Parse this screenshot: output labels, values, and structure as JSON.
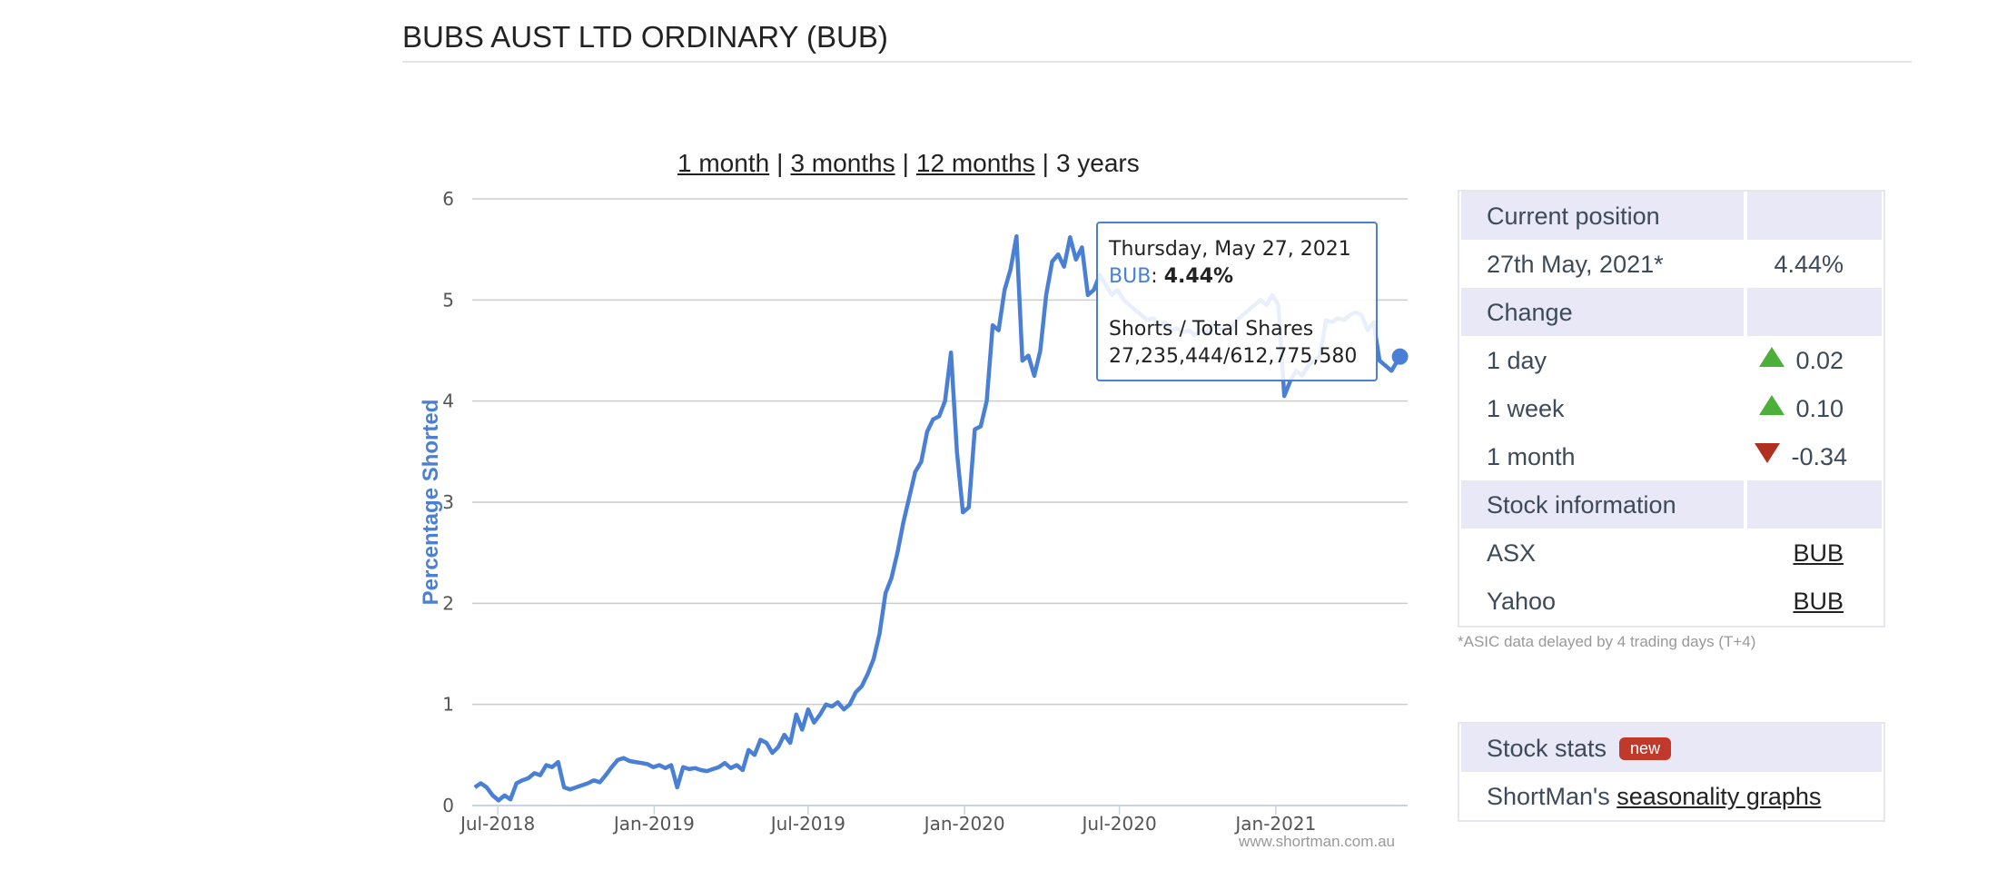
{
  "page": {
    "title": "BUBS AUST LTD ORDINARY (BUB)"
  },
  "range_nav": {
    "options": [
      "1 month",
      "3 months",
      "12 months",
      "3 years"
    ],
    "separator": "|",
    "active": "3 years"
  },
  "chart_data": {
    "type": "line",
    "ylabel": "Percentage Shorted",
    "ylim": [
      0,
      6
    ],
    "y_ticks": [
      "0",
      "1",
      "2",
      "3",
      "4",
      "5",
      "6"
    ],
    "x_range": [
      "2018-06-01",
      "2021-06-05"
    ],
    "x_ticks": [
      {
        "date": "2018-07-01",
        "label": "Jul-2018"
      },
      {
        "date": "2019-01-01",
        "label": "Jan-2019"
      },
      {
        "date": "2019-07-01",
        "label": "Jul-2019"
      },
      {
        "date": "2020-01-01",
        "label": "Jan-2020"
      },
      {
        "date": "2020-07-01",
        "label": "Jul-2020"
      },
      {
        "date": "2021-01-01",
        "label": "Jan-2021"
      }
    ],
    "grid": true,
    "credits": "www.shortman.com.au",
    "series": [
      {
        "name": "BUB",
        "color": "#4a7fd6",
        "points": [
          [
            "2018-06-04",
            0.18
          ],
          [
            "2018-06-11",
            0.22
          ],
          [
            "2018-06-18",
            0.18
          ],
          [
            "2018-06-25",
            0.1
          ],
          [
            "2018-07-02",
            0.05
          ],
          [
            "2018-07-09",
            0.1
          ],
          [
            "2018-07-16",
            0.06
          ],
          [
            "2018-07-23",
            0.22
          ],
          [
            "2018-07-30",
            0.25
          ],
          [
            "2018-08-06",
            0.27
          ],
          [
            "2018-08-13",
            0.32
          ],
          [
            "2018-08-20",
            0.3
          ],
          [
            "2018-08-27",
            0.4
          ],
          [
            "2018-09-03",
            0.38
          ],
          [
            "2018-09-10",
            0.43
          ],
          [
            "2018-09-17",
            0.18
          ],
          [
            "2018-09-24",
            0.16
          ],
          [
            "2018-10-01",
            0.18
          ],
          [
            "2018-10-08",
            0.2
          ],
          [
            "2018-10-15",
            0.22
          ],
          [
            "2018-10-22",
            0.25
          ],
          [
            "2018-10-29",
            0.23
          ],
          [
            "2018-11-05",
            0.3
          ],
          [
            "2018-11-12",
            0.38
          ],
          [
            "2018-11-19",
            0.45
          ],
          [
            "2018-11-26",
            0.47
          ],
          [
            "2018-12-03",
            0.44
          ],
          [
            "2018-12-10",
            0.43
          ],
          [
            "2018-12-17",
            0.42
          ],
          [
            "2018-12-24",
            0.41
          ],
          [
            "2018-12-31",
            0.38
          ],
          [
            "2019-01-07",
            0.4
          ],
          [
            "2019-01-14",
            0.37
          ],
          [
            "2019-01-21",
            0.4
          ],
          [
            "2019-01-28",
            0.18
          ],
          [
            "2019-02-04",
            0.38
          ],
          [
            "2019-02-11",
            0.36
          ],
          [
            "2019-02-18",
            0.37
          ],
          [
            "2019-02-25",
            0.35
          ],
          [
            "2019-03-04",
            0.34
          ],
          [
            "2019-03-11",
            0.36
          ],
          [
            "2019-03-18",
            0.38
          ],
          [
            "2019-03-25",
            0.42
          ],
          [
            "2019-04-01",
            0.37
          ],
          [
            "2019-04-08",
            0.4
          ],
          [
            "2019-04-15",
            0.35
          ],
          [
            "2019-04-22",
            0.55
          ],
          [
            "2019-04-29",
            0.5
          ],
          [
            "2019-05-06",
            0.65
          ],
          [
            "2019-05-13",
            0.62
          ],
          [
            "2019-05-20",
            0.52
          ],
          [
            "2019-05-27",
            0.58
          ],
          [
            "2019-06-03",
            0.7
          ],
          [
            "2019-06-10",
            0.62
          ],
          [
            "2019-06-17",
            0.9
          ],
          [
            "2019-06-24",
            0.75
          ],
          [
            "2019-07-01",
            0.95
          ],
          [
            "2019-07-08",
            0.82
          ],
          [
            "2019-07-15",
            0.9
          ],
          [
            "2019-07-22",
            1.0
          ],
          [
            "2019-07-29",
            0.98
          ],
          [
            "2019-08-05",
            1.02
          ],
          [
            "2019-08-12",
            0.95
          ],
          [
            "2019-08-19",
            1.0
          ],
          [
            "2019-08-26",
            1.12
          ],
          [
            "2019-09-02",
            1.18
          ],
          [
            "2019-09-09",
            1.3
          ],
          [
            "2019-09-16",
            1.45
          ],
          [
            "2019-09-23",
            1.7
          ],
          [
            "2019-09-30",
            2.1
          ],
          [
            "2019-10-07",
            2.25
          ],
          [
            "2019-10-14",
            2.5
          ],
          [
            "2019-10-21",
            2.8
          ],
          [
            "2019-10-28",
            3.05
          ],
          [
            "2019-11-04",
            3.3
          ],
          [
            "2019-11-11",
            3.4
          ],
          [
            "2019-11-18",
            3.7
          ],
          [
            "2019-11-25",
            3.82
          ],
          [
            "2019-12-02",
            3.85
          ],
          [
            "2019-12-09",
            4.0
          ],
          [
            "2019-12-16",
            4.48
          ],
          [
            "2019-12-23",
            3.5
          ],
          [
            "2019-12-30",
            2.9
          ],
          [
            "2020-01-06",
            2.95
          ],
          [
            "2020-01-13",
            3.72
          ],
          [
            "2020-01-20",
            3.75
          ],
          [
            "2020-01-27",
            4.0
          ],
          [
            "2020-02-03",
            4.75
          ],
          [
            "2020-02-10",
            4.7
          ],
          [
            "2020-02-17",
            5.1
          ],
          [
            "2020-02-24",
            5.3
          ],
          [
            "2020-03-02",
            5.63
          ],
          [
            "2020-03-09",
            4.4
          ],
          [
            "2020-03-16",
            4.45
          ],
          [
            "2020-03-23",
            4.25
          ],
          [
            "2020-03-30",
            4.5
          ],
          [
            "2020-04-06",
            5.05
          ],
          [
            "2020-04-13",
            5.38
          ],
          [
            "2020-04-20",
            5.45
          ],
          [
            "2020-04-27",
            5.33
          ],
          [
            "2020-05-04",
            5.62
          ],
          [
            "2020-05-11",
            5.4
          ],
          [
            "2020-05-18",
            5.52
          ],
          [
            "2020-05-25",
            5.05
          ],
          [
            "2020-06-01",
            5.1
          ],
          [
            "2020-06-08",
            5.25
          ],
          [
            "2020-06-15",
            5.15
          ],
          [
            "2020-06-22",
            5.05
          ],
          [
            "2020-06-29",
            5.1
          ],
          [
            "2020-07-06",
            5.0
          ],
          [
            "2020-07-13",
            4.95
          ],
          [
            "2020-07-20",
            4.9
          ],
          [
            "2020-07-27",
            4.85
          ],
          [
            "2020-08-03",
            4.8
          ],
          [
            "2020-08-10",
            4.82
          ],
          [
            "2020-08-17",
            4.75
          ],
          [
            "2020-08-24",
            4.78
          ],
          [
            "2020-08-31",
            4.7
          ],
          [
            "2020-09-07",
            4.72
          ],
          [
            "2020-09-14",
            4.68
          ],
          [
            "2020-09-21",
            4.7
          ],
          [
            "2020-09-28",
            4.65
          ],
          [
            "2020-10-05",
            4.7
          ],
          [
            "2020-10-12",
            4.68
          ],
          [
            "2020-10-19",
            4.75
          ],
          [
            "2020-10-26",
            4.72
          ],
          [
            "2020-11-02",
            4.7
          ],
          [
            "2020-11-09",
            4.7
          ],
          [
            "2020-11-16",
            4.8
          ],
          [
            "2020-11-23",
            4.85
          ],
          [
            "2020-11-30",
            4.9
          ],
          [
            "2020-12-07",
            4.95
          ],
          [
            "2020-12-14",
            5.0
          ],
          [
            "2020-12-21",
            4.95
          ],
          [
            "2020-12-28",
            5.05
          ],
          [
            "2021-01-04",
            4.95
          ],
          [
            "2021-01-11",
            4.05
          ],
          [
            "2021-01-18",
            4.2
          ],
          [
            "2021-01-25",
            4.3
          ],
          [
            "2021-02-01",
            4.25
          ],
          [
            "2021-02-08",
            4.35
          ],
          [
            "2021-02-15",
            4.4
          ],
          [
            "2021-02-22",
            4.45
          ],
          [
            "2021-03-01",
            4.8
          ],
          [
            "2021-03-08",
            4.78
          ],
          [
            "2021-03-15",
            4.82
          ],
          [
            "2021-03-22",
            4.8
          ],
          [
            "2021-03-29",
            4.85
          ],
          [
            "2021-04-05",
            4.88
          ],
          [
            "2021-04-12",
            4.85
          ],
          [
            "2021-04-19",
            4.7
          ],
          [
            "2021-04-26",
            4.78
          ],
          [
            "2021-05-03",
            4.4
          ],
          [
            "2021-05-10",
            4.35
          ],
          [
            "2021-05-17",
            4.3
          ],
          [
            "2021-05-27",
            4.44
          ]
        ]
      }
    ],
    "highlight": {
      "date": "2021-05-27",
      "value": 4.44
    }
  },
  "tooltip": {
    "date": "Thursday, May 27, 2021",
    "series": "BUB",
    "colon": ":",
    "value": "4.44%",
    "line_label": "Shorts / Total Shares",
    "line_value": "27,235,444/612,775,580"
  },
  "position_panel": {
    "current_heading": "Current position",
    "current_date": "27th May, 2021*",
    "current_value": "4.44%",
    "change_heading": "Change",
    "changes": [
      {
        "label": "1 day",
        "direction": "up",
        "value": "0.02"
      },
      {
        "label": "1 week",
        "direction": "up",
        "value": "0.10"
      },
      {
        "label": "1 month",
        "direction": "down",
        "value": "-0.34"
      }
    ],
    "info_heading": "Stock information",
    "links": [
      {
        "label": "ASX",
        "value": "BUB"
      },
      {
        "label": "Yahoo",
        "value": "BUB"
      }
    ],
    "footnote": "*ASIC data delayed by 4 trading days (T+4)"
  },
  "stats_panel": {
    "heading": "Stock stats",
    "badge": "new",
    "prefix": "ShortMan's",
    "link": "seasonality graphs"
  }
}
